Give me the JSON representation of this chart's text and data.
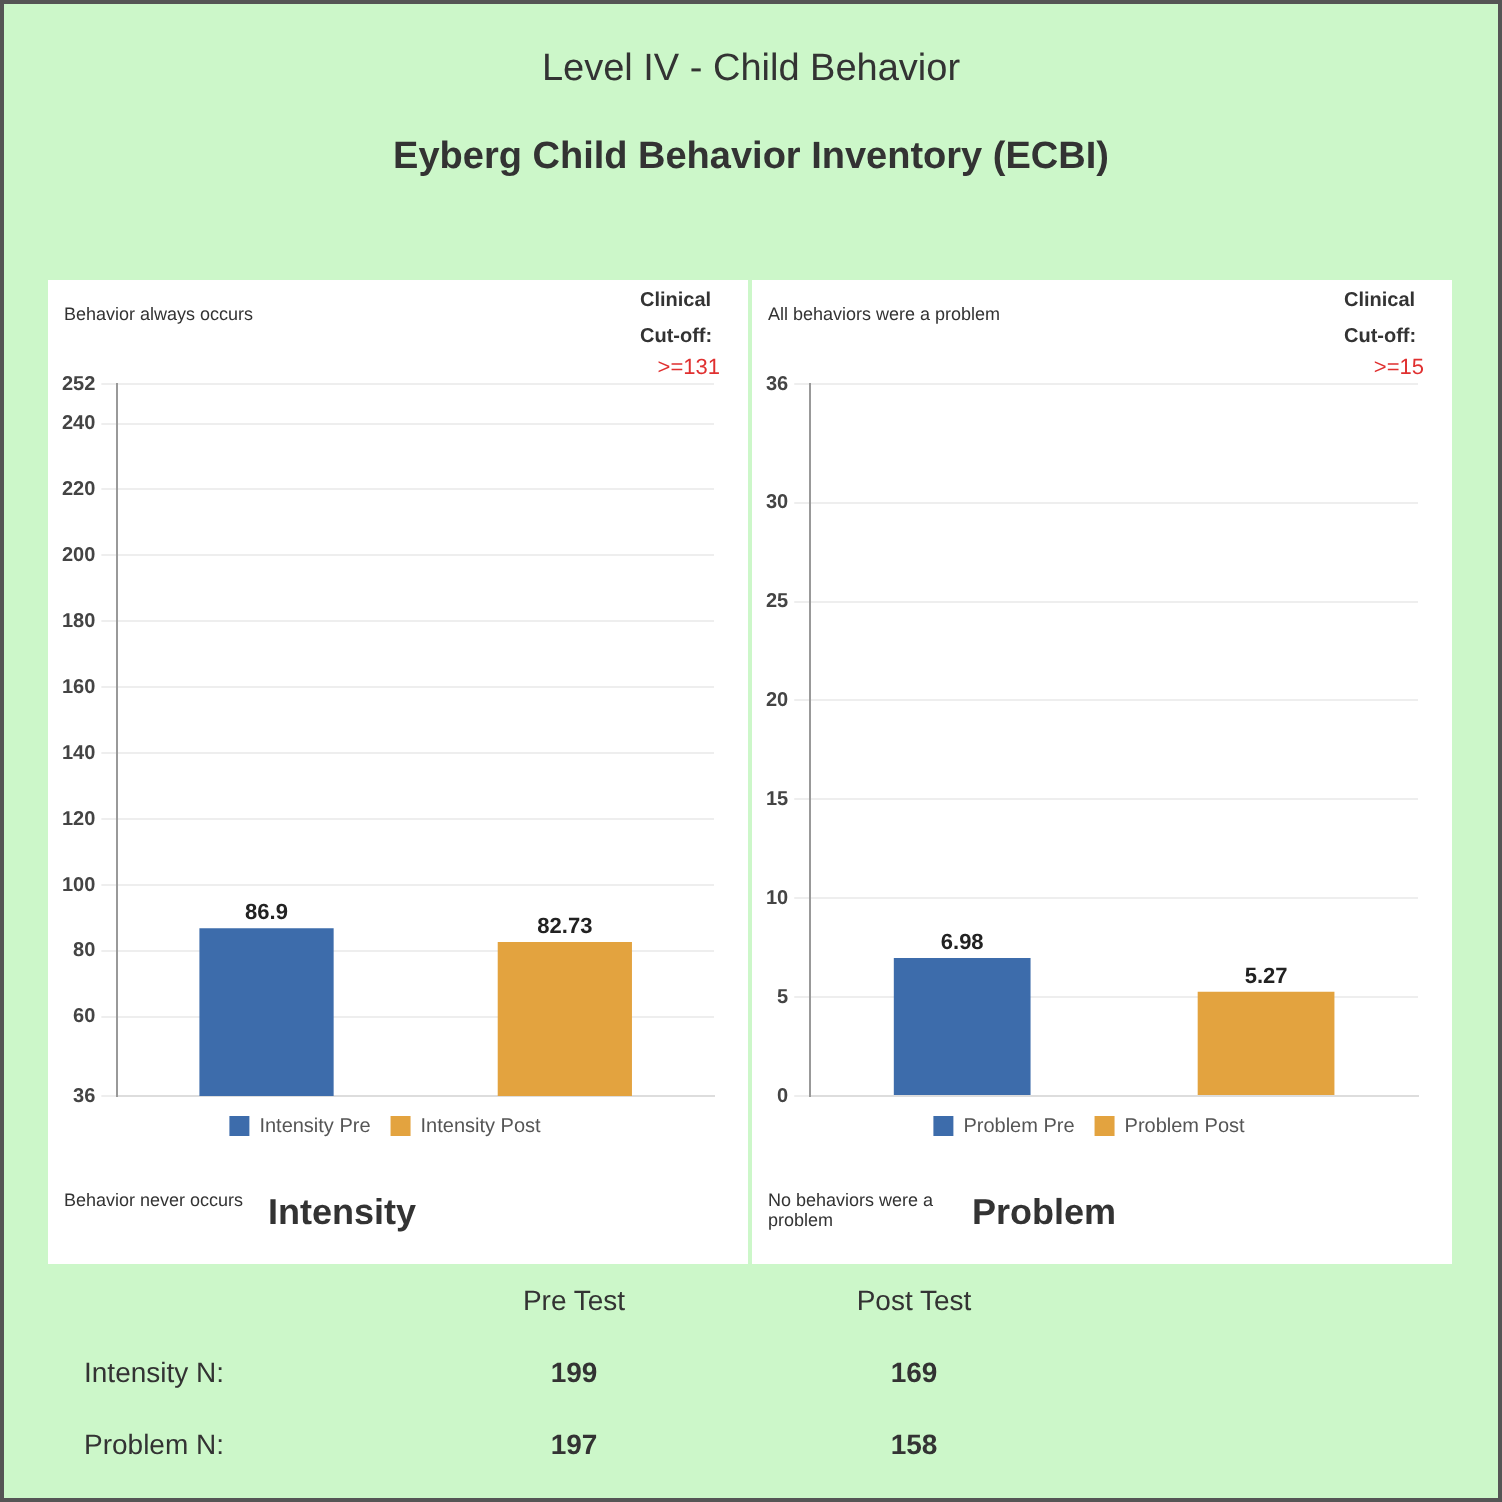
{
  "chart_data": [
    {
      "type": "bar",
      "title": "Level IV - Child Behavior",
      "subtitle": "Eyberg Child Behavior Inventory (ECBI)",
      "xlabel": "Intensity",
      "categories": [
        null,
        null
      ],
      "series": [
        {
          "name": "Intensity Pre",
          "color": "#3d6cab",
          "values": [
            86.9,
            null
          ]
        },
        {
          "name": "Intensity Post",
          "color": "#e3a33f",
          "values": [
            null,
            82.73
          ]
        }
      ],
      "ylim": [
        36,
        252
      ],
      "yticks": [
        36,
        60,
        80,
        100,
        120,
        140,
        160,
        180,
        200,
        220,
        240,
        252
      ],
      "grid": "y",
      "legend": "bottom",
      "tick_labels": "y",
      "data_labels": true,
      "annotations": [
        "Behavior always occurs",
        "Clinical Cut-off:",
        ">=131",
        "Behavior never occurs"
      ]
    },
    {
      "type": "bar",
      "xlabel": "Problem",
      "categories": [
        null,
        null
      ],
      "series": [
        {
          "name": "Problem Pre",
          "color": "#3d6cab",
          "values": [
            6.98,
            null
          ]
        },
        {
          "name": "Problem Post",
          "color": "#e3a33f",
          "values": [
            null,
            5.27
          ]
        }
      ],
      "ylim": [
        0,
        36
      ],
      "yticks": [
        0,
        5,
        10,
        15,
        20,
        25,
        30,
        36
      ],
      "grid": "y",
      "legend": "bottom",
      "tick_labels": "y",
      "data_labels": true,
      "annotations": [
        "All behaviors were a problem",
        "Clinical Cut-off:",
        ">=15",
        "No behaviors were a problem"
      ]
    },
    {
      "type": "other",
      "annotations": [
        "Pre Test",
        "Post Test",
        "Intensity N:",
        "199",
        "169",
        "Problem N:",
        "197",
        "158"
      ]
    }
  ]
}
